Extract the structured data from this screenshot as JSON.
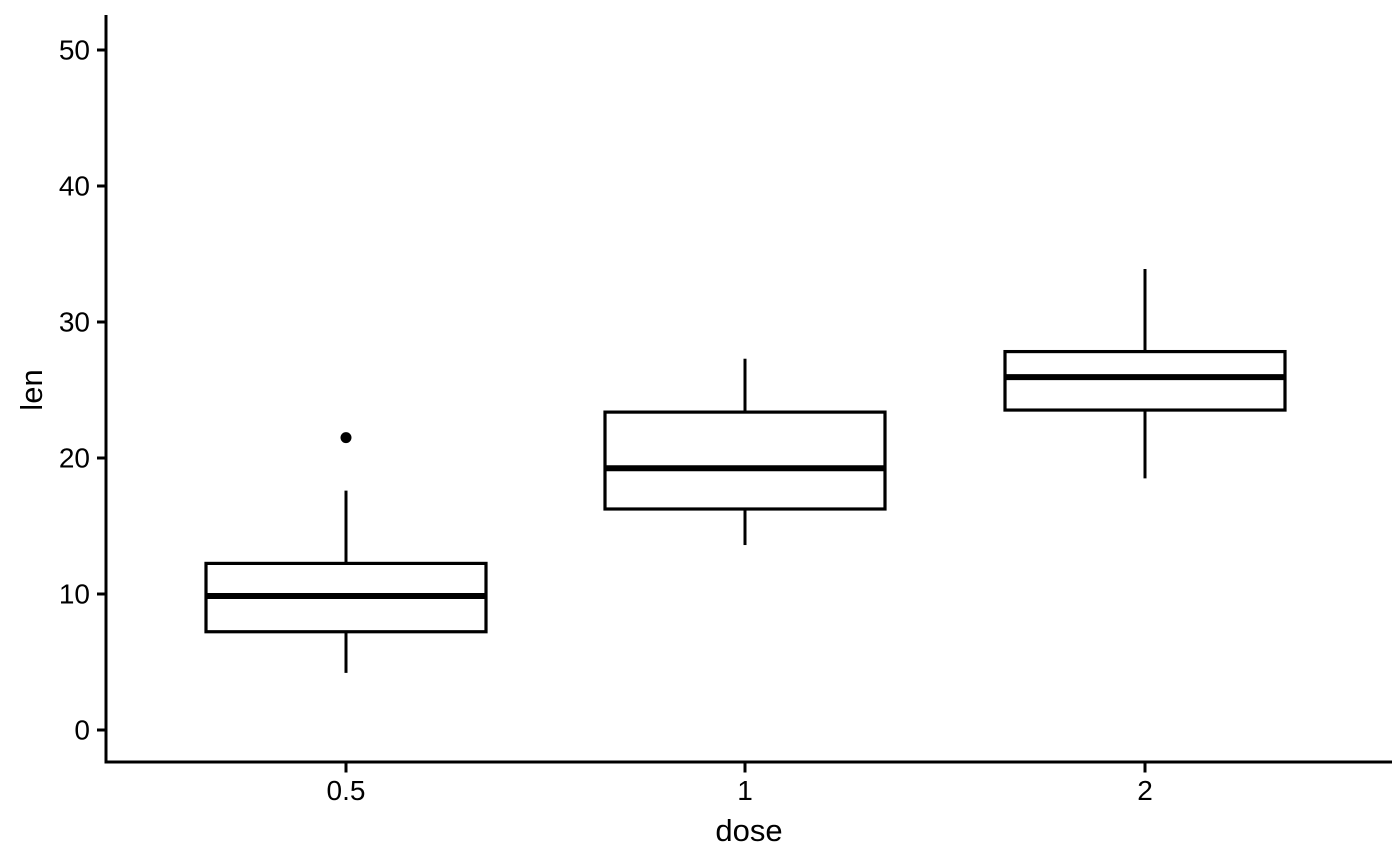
{
  "figure": {
    "background": "#ffffff"
  },
  "chart_data": {
    "type": "boxplot",
    "title": "",
    "xlabel": "dose",
    "ylabel": "len",
    "categories": [
      "0.5",
      "1",
      "2"
    ],
    "y_tick_values": [
      0,
      10,
      20,
      30,
      40,
      50
    ],
    "y_tick_labels": [
      "0",
      "10",
      "20",
      "30",
      "40",
      "50"
    ],
    "ylim": [
      -2.4,
      52.6
    ],
    "grid": false,
    "legend": false,
    "series": [
      {
        "category": "0.5",
        "lower_whisker": 4.2,
        "q1": 7.225,
        "median": 9.85,
        "q3": 12.25,
        "upper_whisker": 17.6,
        "outliers": [
          21.5
        ]
      },
      {
        "category": "1",
        "lower_whisker": 13.6,
        "q1": 16.25,
        "median": 19.25,
        "q3": 23.375,
        "upper_whisker": 27.3,
        "outliers": []
      },
      {
        "category": "2",
        "lower_whisker": 18.5,
        "q1": 23.525,
        "median": 25.95,
        "q3": 27.825,
        "upper_whisker": 33.9,
        "outliers": []
      }
    ],
    "colors": {
      "axis": "#000000",
      "text": "#000000",
      "box_stroke": "#000000",
      "box_fill": "#ffffff",
      "median": "#000000",
      "outlier": "#000000"
    }
  }
}
